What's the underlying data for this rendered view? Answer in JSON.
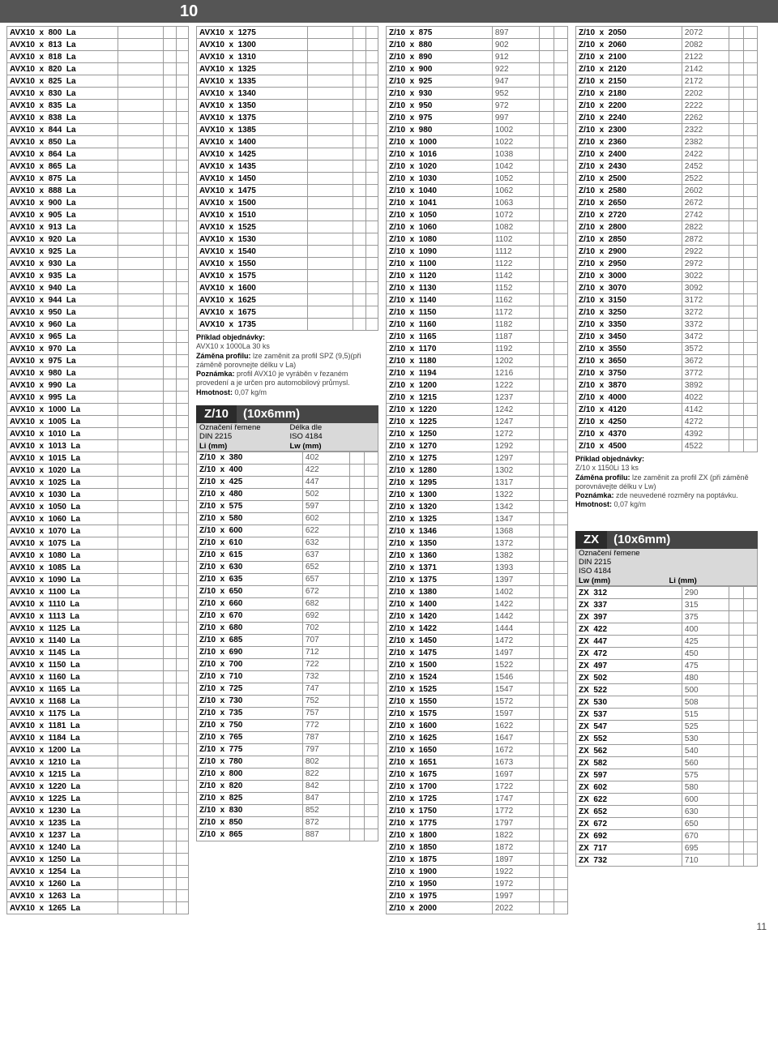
{
  "topbar": "10",
  "col1a": [
    "800",
    "813",
    "818",
    "820",
    "825",
    "830",
    "835",
    "838",
    "844",
    "850",
    "864",
    "865",
    "875",
    "888",
    "900",
    "905",
    "913",
    "920",
    "925",
    "930",
    "935",
    "940",
    "944",
    "950",
    "960",
    "965",
    "970",
    "975",
    "980",
    "990",
    "995",
    "1000",
    "1005",
    "1010",
    "1013",
    "1015",
    "1020",
    "1025",
    "1030",
    "1050",
    "1060",
    "1070",
    "1075",
    "1080",
    "1085",
    "1090",
    "1100",
    "1110",
    "1113",
    "1125",
    "1140",
    "1145",
    "1150",
    "1160",
    "1165",
    "1168",
    "1175",
    "1181",
    "1184",
    "1200",
    "1210",
    "1215",
    "1220",
    "1225",
    "1230",
    "1235",
    "1237",
    "1240",
    "1250",
    "1254",
    "1260",
    "1263",
    "1265"
  ],
  "col2a": [
    "1275",
    "1300",
    "1310",
    "1325",
    "1335",
    "1340",
    "1350",
    "1375",
    "1385",
    "1400",
    "1425",
    "1435",
    "1450",
    "1475",
    "1500",
    "1510",
    "1525",
    "1530",
    "1540",
    "1550",
    "1575",
    "1600",
    "1625",
    "1675",
    "1735"
  ],
  "note1": {
    "t": "Příklad objednávky:",
    "l1": "AVX10 x 1000La  30 ks",
    "l2": "Záměna profilu:",
    "l3": " lze zaměnit za profil SPZ (9,5)(při záměně porovnejte délku v La)",
    "l4": "Poznámka:",
    "l5": " profil AVX10 je vyráběn v řezaném provedení a je určen pro automobilový průmysl.",
    "l6": "Hmotnost:",
    "l7": " 0,07 kg/m"
  },
  "z10head": {
    "l": "Z/10",
    "r": "(10x6mm)"
  },
  "z10sub": {
    "a": "Označení řemene",
    "b": "Délka dle",
    "c": "DIN 2215",
    "d": "ISO 4184",
    "e": "Li (mm)",
    "f": "Lw (mm)"
  },
  "z10a": [
    [
      "380",
      "402"
    ],
    [
      "400",
      "422"
    ],
    [
      "425",
      "447"
    ],
    [
      "480",
      "502"
    ],
    [
      "575",
      "597"
    ],
    [
      "580",
      "602"
    ],
    [
      "600",
      "622"
    ],
    [
      "610",
      "632"
    ],
    [
      "615",
      "637"
    ],
    [
      "630",
      "652"
    ],
    [
      "635",
      "657"
    ],
    [
      "650",
      "672"
    ],
    [
      "660",
      "682"
    ],
    [
      "670",
      "692"
    ],
    [
      "680",
      "702"
    ],
    [
      "685",
      "707"
    ],
    [
      "690",
      "712"
    ],
    [
      "700",
      "722"
    ],
    [
      "710",
      "732"
    ],
    [
      "725",
      "747"
    ],
    [
      "730",
      "752"
    ],
    [
      "735",
      "757"
    ],
    [
      "750",
      "772"
    ],
    [
      "765",
      "787"
    ],
    [
      "775",
      "797"
    ],
    [
      "780",
      "802"
    ],
    [
      "800",
      "822"
    ],
    [
      "820",
      "842"
    ],
    [
      "825",
      "847"
    ],
    [
      "830",
      "852"
    ],
    [
      "850",
      "872"
    ],
    [
      "865",
      "887"
    ]
  ],
  "z10b": [
    [
      "875",
      "897"
    ],
    [
      "880",
      "902"
    ],
    [
      "890",
      "912"
    ],
    [
      "900",
      "922"
    ],
    [
      "925",
      "947"
    ],
    [
      "930",
      "952"
    ],
    [
      "950",
      "972"
    ],
    [
      "975",
      "997"
    ],
    [
      "980",
      "1002"
    ],
    [
      "1000",
      "1022"
    ],
    [
      "1016",
      "1038"
    ],
    [
      "1020",
      "1042"
    ],
    [
      "1030",
      "1052"
    ],
    [
      "1040",
      "1062"
    ],
    [
      "1041",
      "1063"
    ],
    [
      "1050",
      "1072"
    ],
    [
      "1060",
      "1082"
    ],
    [
      "1080",
      "1102"
    ],
    [
      "1090",
      "1112"
    ],
    [
      "1100",
      "1122"
    ],
    [
      "1120",
      "1142"
    ],
    [
      "1130",
      "1152"
    ],
    [
      "1140",
      "1162"
    ],
    [
      "1150",
      "1172"
    ],
    [
      "1160",
      "1182"
    ],
    [
      "1165",
      "1187"
    ],
    [
      "1170",
      "1192"
    ],
    [
      "1180",
      "1202"
    ],
    [
      "1194",
      "1216"
    ],
    [
      "1200",
      "1222"
    ],
    [
      "1215",
      "1237"
    ],
    [
      "1220",
      "1242"
    ],
    [
      "1225",
      "1247"
    ],
    [
      "1250",
      "1272"
    ],
    [
      "1270",
      "1292"
    ],
    [
      "1275",
      "1297"
    ],
    [
      "1280",
      "1302"
    ],
    [
      "1295",
      "1317"
    ],
    [
      "1300",
      "1322"
    ],
    [
      "1320",
      "1342"
    ],
    [
      "1325",
      "1347"
    ],
    [
      "1346",
      "1368"
    ],
    [
      "1350",
      "1372"
    ],
    [
      "1360",
      "1382"
    ],
    [
      "1371",
      "1393"
    ],
    [
      "1375",
      "1397"
    ],
    [
      "1380",
      "1402"
    ],
    [
      "1400",
      "1422"
    ],
    [
      "1420",
      "1442"
    ],
    [
      "1422",
      "1444"
    ],
    [
      "1450",
      "1472"
    ],
    [
      "1475",
      "1497"
    ],
    [
      "1500",
      "1522"
    ],
    [
      "1524",
      "1546"
    ],
    [
      "1525",
      "1547"
    ],
    [
      "1550",
      "1572"
    ],
    [
      "1575",
      "1597"
    ],
    [
      "1600",
      "1622"
    ],
    [
      "1625",
      "1647"
    ],
    [
      "1650",
      "1672"
    ],
    [
      "1651",
      "1673"
    ],
    [
      "1675",
      "1697"
    ],
    [
      "1700",
      "1722"
    ],
    [
      "1725",
      "1747"
    ],
    [
      "1750",
      "1772"
    ],
    [
      "1775",
      "1797"
    ],
    [
      "1800",
      "1822"
    ],
    [
      "1850",
      "1872"
    ],
    [
      "1875",
      "1897"
    ],
    [
      "1900",
      "1922"
    ],
    [
      "1950",
      "1972"
    ],
    [
      "1975",
      "1997"
    ],
    [
      "2000",
      "2022"
    ]
  ],
  "z10c": [
    [
      "2050",
      "2072"
    ],
    [
      "2060",
      "2082"
    ],
    [
      "2100",
      "2122"
    ],
    [
      "2120",
      "2142"
    ],
    [
      "2150",
      "2172"
    ],
    [
      "2180",
      "2202"
    ],
    [
      "2200",
      "2222"
    ],
    [
      "2240",
      "2262"
    ],
    [
      "2300",
      "2322"
    ],
    [
      "2360",
      "2382"
    ],
    [
      "2400",
      "2422"
    ],
    [
      "2430",
      "2452"
    ],
    [
      "2500",
      "2522"
    ],
    [
      "2580",
      "2602"
    ],
    [
      "2650",
      "2672"
    ],
    [
      "2720",
      "2742"
    ],
    [
      "2800",
      "2822"
    ],
    [
      "2850",
      "2872"
    ],
    [
      "2900",
      "2922"
    ],
    [
      "2950",
      "2972"
    ],
    [
      "3000",
      "3022"
    ],
    [
      "3070",
      "3092"
    ],
    [
      "3150",
      "3172"
    ],
    [
      "3250",
      "3272"
    ],
    [
      "3350",
      "3372"
    ],
    [
      "3450",
      "3472"
    ],
    [
      "3550",
      "3572"
    ],
    [
      "3650",
      "3672"
    ],
    [
      "3750",
      "3772"
    ],
    [
      "3870",
      "3892"
    ],
    [
      "4000",
      "4022"
    ],
    [
      "4120",
      "4142"
    ],
    [
      "4250",
      "4272"
    ],
    [
      "4370",
      "4392"
    ],
    [
      "4500",
      "4522"
    ]
  ],
  "note2": {
    "t": "Příklad objednávky:",
    "l1": "Z/10 x 1150Li  13 ks",
    "l2": "Záměna profilu:",
    "l3": " lze zaměnit za profil ZX (při záměně porovnávejte délku v Lw)",
    "l4": "Poznámka:",
    "l5": " zde neuvedené rozměry na poptávku.",
    "l6": "Hmotnost:",
    "l7": " 0,07 kg/m"
  },
  "zxhead": {
    "l": "ZX",
    "r": "(10x6mm)"
  },
  "zxsub": {
    "a": "Označení řemene",
    "b": "DIN 2215",
    "c": "ISO 4184",
    "d": "Lw (mm)",
    "e": "Li (mm)"
  },
  "zx": [
    [
      "312",
      "290"
    ],
    [
      "337",
      "315"
    ],
    [
      "397",
      "375"
    ],
    [
      "422",
      "400"
    ],
    [
      "447",
      "425"
    ],
    [
      "472",
      "450"
    ],
    [
      "497",
      "475"
    ],
    [
      "502",
      "480"
    ],
    [
      "522",
      "500"
    ],
    [
      "530",
      "508"
    ],
    [
      "537",
      "515"
    ],
    [
      "547",
      "525"
    ],
    [
      "552",
      "530"
    ],
    [
      "562",
      "540"
    ],
    [
      "582",
      "560"
    ],
    [
      "597",
      "575"
    ],
    [
      "602",
      "580"
    ],
    [
      "622",
      "600"
    ],
    [
      "652",
      "630"
    ],
    [
      "672",
      "650"
    ],
    [
      "692",
      "670"
    ],
    [
      "717",
      "695"
    ],
    [
      "732",
      "710"
    ]
  ],
  "pagenum": "11"
}
